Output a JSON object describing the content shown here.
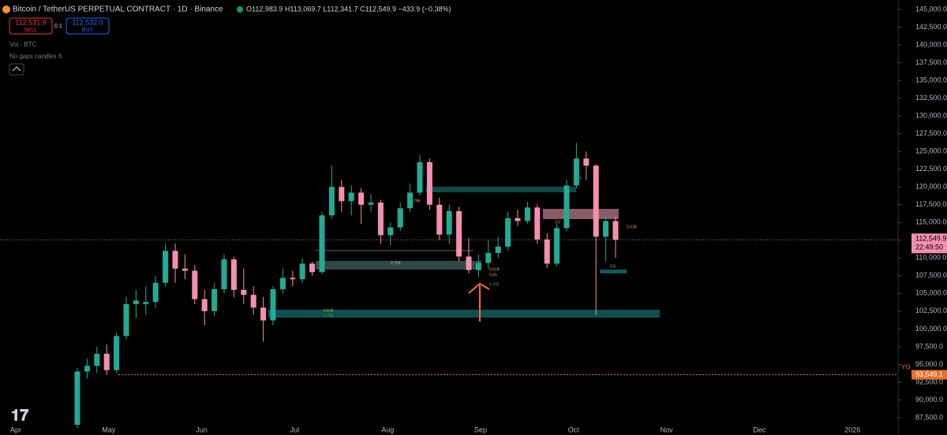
{
  "header": {
    "symbol": "Bitcoin / TetherUS PERPETUAL CONTRACT · 1D · Binance",
    "ohlc": "O112,983.9 H113,069.7 L112,341.7 C112,549.9 −433.9 (−0.38%)"
  },
  "trade": {
    "sell_price": "112,531.9",
    "sell": "SELL",
    "spread": "0.1",
    "buy_price": "112,532.0",
    "buy": "BUY"
  },
  "indicators": [
    "Vol · BTC",
    "No gaps candles 6"
  ],
  "fib_labels": [
    "0.786",
    "0.786",
    "0.618",
    "0.65",
    "0.705",
    "0.618",
    "0.705",
    "0.5",
    "0.5",
    "0.5",
    "0.618"
  ],
  "chart_data": {
    "type": "candlestick",
    "up_color": "#22ab94",
    "down_color": "#f48fb1",
    "open": [
      86500,
      94000,
      94800,
      96500,
      94200,
      99000,
      103500,
      103500,
      103800,
      106500,
      111000,
      108500,
      108200,
      104200,
      102500,
      105600,
      109800,
      105500,
      104800,
      103000,
      101200,
      105600,
      107200,
      107000,
      109200,
      108000,
      116000,
      120000,
      118000,
      119200,
      117500,
      117800,
      113200,
      114300,
      117000,
      119200,
      123500,
      117500,
      113300,
      116600,
      110200,
      108300,
      109300,
      110700,
      111600,
      115600,
      115200,
      117100,
      112600,
      109200,
      114200,
      120200,
      124000,
      123000,
      113000,
      115200
    ],
    "high": [
      94500,
      95800,
      97500,
      97800,
      99500,
      104500,
      105500,
      106000,
      107500,
      112000,
      112000,
      110500,
      109000,
      105500,
      106500,
      110500,
      110200,
      108500,
      106000,
      104500,
      106000,
      108500,
      108200,
      110000,
      109500,
      116500,
      123000,
      121000,
      120200,
      119800,
      119000,
      118200,
      115000,
      117800,
      120500,
      124500,
      124000,
      118500,
      117500,
      117200,
      112800,
      110500,
      112500,
      113000,
      116500,
      116800,
      117900,
      117500,
      113500,
      114800,
      121000,
      126200,
      125000,
      123200,
      116000,
      115800
    ],
    "low": [
      86000,
      93000,
      93800,
      93500,
      93800,
      98500,
      101500,
      102000,
      103000,
      106000,
      106500,
      107000,
      103500,
      100500,
      101800,
      105000,
      104500,
      103500,
      102000,
      98200,
      100500,
      105000,
      106000,
      106500,
      107500,
      107800,
      115500,
      116500,
      116000,
      114800,
      116500,
      112000,
      111800,
      113800,
      116500,
      118800,
      116800,
      112500,
      112000,
      109500,
      107800,
      107300,
      108500,
      110000,
      111000,
      114500,
      114800,
      112000,
      108600,
      108800,
      113800,
      119800,
      121000,
      102000,
      109500,
      110000
    ],
    "close": [
      94000,
      94800,
      96500,
      94200,
      99000,
      103500,
      104000,
      103800,
      106500,
      111000,
      108500,
      108200,
      104200,
      102500,
      105600,
      109800,
      105500,
      104800,
      103000,
      101200,
      105600,
      107200,
      107000,
      109200,
      108000,
      116000,
      120000,
      118000,
      119200,
      117500,
      117800,
      113200,
      114300,
      117000,
      119200,
      123500,
      117500,
      113300,
      116600,
      110200,
      108300,
      109300,
      110700,
      111600,
      115600,
      115200,
      117100,
      112600,
      109200,
      114200,
      120200,
      124000,
      123000,
      113000,
      115200,
      112550
    ],
    "ylim": [
      85058,
      146332
    ],
    "yticks": [
      {
        "value": 87500,
        "label": "87,500.0"
      },
      {
        "value": 90000,
        "label": "90,000.0"
      },
      {
        "value": 92500,
        "label": "92,500.0"
      },
      {
        "value": 95000,
        "label": "95,000.0"
      },
      {
        "value": 97500,
        "label": "97,500.0"
      },
      {
        "value": 100000,
        "label": "100,000.0"
      },
      {
        "value": 102500,
        "label": "102,500.0"
      },
      {
        "value": 105000,
        "label": "105,000.0"
      },
      {
        "value": 107500,
        "label": "107,500.0"
      },
      {
        "value": 110000,
        "label": "110,000.0"
      },
      {
        "value": 112500,
        "label": "112,500.0"
      },
      {
        "value": 115000,
        "label": "115,000.0"
      },
      {
        "value": 117500,
        "label": "117,500.0"
      },
      {
        "value": 120000,
        "label": "120,000.0"
      },
      {
        "value": 122500,
        "label": "122,500.0"
      },
      {
        "value": 125000,
        "label": "125,000.0"
      },
      {
        "value": 127500,
        "label": "127,500.0"
      },
      {
        "value": 130000,
        "label": "130,000.0"
      },
      {
        "value": 132500,
        "label": "132,500.0"
      },
      {
        "value": 135000,
        "label": "135,000.0"
      },
      {
        "value": 137500,
        "label": "137,500.0"
      },
      {
        "value": 140000,
        "label": "140,000.0"
      },
      {
        "value": 142500,
        "label": "142,500.0"
      },
      {
        "value": 145000,
        "label": "145,000.0"
      }
    ],
    "x_labels": [
      "Apr",
      "May",
      "Jun",
      "Jul",
      "Aug",
      "Sep",
      "Oct",
      "Nov",
      "Dec",
      "2026"
    ],
    "last_price": {
      "value": 112549.9,
      "label": "112,549.9"
    },
    "countdown": "22:49:50",
    "yo": {
      "name": "YO",
      "value": 93549.1,
      "label": "93,549.1"
    }
  }
}
